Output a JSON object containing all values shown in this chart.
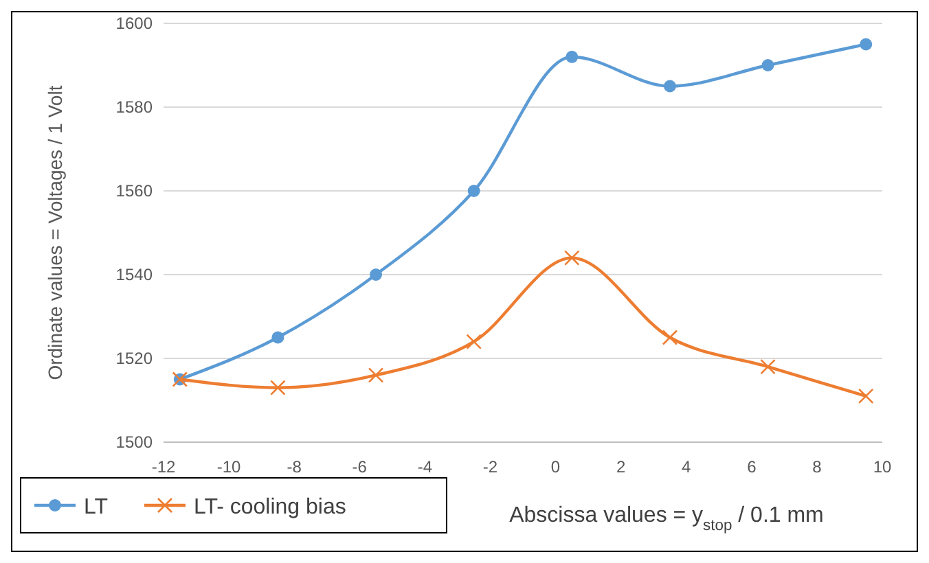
{
  "chart_data": {
    "type": "line",
    "xlabel": "Abscissa values = y$_{stop}$ / 0.1 mm",
    "ylabel": "Ordinate values = Voltages / 1 Volt",
    "x": [
      -11.5,
      -8.5,
      -5.5,
      -2.5,
      0.5,
      3.5,
      6.5,
      9.5
    ],
    "series": [
      {
        "name": "LT",
        "color": "#5b9bd5",
        "marker": "circle",
        "values": [
          1515,
          1525,
          1540,
          1560,
          1592,
          1585,
          1590,
          1595
        ]
      },
      {
        "name": "LT- cooling bias",
        "color": "#ed7d31",
        "marker": "cross",
        "values": [
          1515,
          1513,
          1516,
          1524,
          1544,
          1525,
          1518,
          1511
        ]
      }
    ],
    "xlim": [
      -12,
      10
    ],
    "xticks": [
      -12,
      -10,
      -8,
      -6,
      -4,
      -2,
      0,
      2,
      4,
      6,
      8,
      10
    ],
    "ylim": [
      1500,
      1600
    ],
    "yticks": [
      1500,
      1520,
      1540,
      1560,
      1580,
      1600
    ],
    "grid": "y",
    "legend": "bottom left",
    "line_style": "solid"
  }
}
